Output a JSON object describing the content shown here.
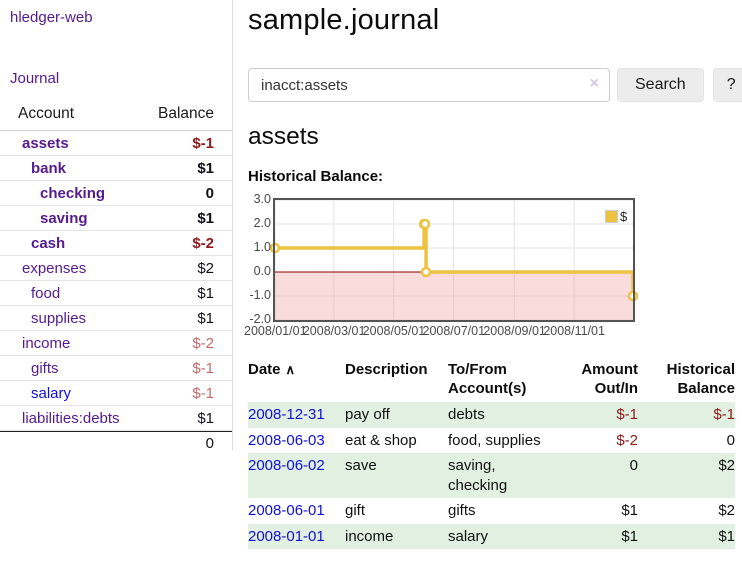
{
  "app": {
    "brand": "hledger-web",
    "nav_journal": "Journal"
  },
  "sidebar": {
    "accounts_header": {
      "account": "Account",
      "balance": "Balance"
    },
    "accounts": [
      {
        "label": "assets",
        "indent": 0,
        "bold": true,
        "balance": "$-1",
        "balance_style": "neg"
      },
      {
        "label": "bank",
        "indent": 1,
        "bold": true,
        "balance": "$1",
        "balance_style": "pos"
      },
      {
        "label": "checking",
        "indent": 2,
        "bold": true,
        "balance": "0",
        "balance_style": "pos"
      },
      {
        "label": "saving",
        "indent": 2,
        "bold": true,
        "balance": "$1",
        "balance_style": "pos"
      },
      {
        "label": "cash",
        "indent": 1,
        "bold": true,
        "balance": "$-2",
        "balance_style": "neg"
      },
      {
        "label": "expenses",
        "indent": 0,
        "bold": false,
        "balance": "$2",
        "balance_style": "pos"
      },
      {
        "label": "food",
        "indent": 1,
        "bold": false,
        "balance": "$1",
        "balance_style": "pos"
      },
      {
        "label": "supplies",
        "indent": 1,
        "bold": false,
        "balance": "$1",
        "balance_style": "pos"
      },
      {
        "label": "income",
        "indent": 0,
        "bold": false,
        "balance": "$-2",
        "balance_style": "neg-faded"
      },
      {
        "label": "gifts",
        "indent": 1,
        "bold": false,
        "balance": "$-1",
        "balance_style": "neg-faded"
      },
      {
        "label": "salary",
        "indent": 1,
        "bold": false,
        "balance": "$-1",
        "balance_style": "neg-faded",
        "unvisited": true
      },
      {
        "label": "liabilities:debts",
        "indent": 0,
        "bold": false,
        "balance": "$1",
        "balance_style": "pos"
      }
    ],
    "total": "0"
  },
  "main": {
    "title": "sample.journal",
    "search": {
      "value": "inacct:assets",
      "clear_icon": "×",
      "search_label": "Search",
      "help_label": "?"
    },
    "account_heading": "assets",
    "chart_label": "Historical Balance:",
    "chart_data": {
      "type": "line",
      "step": true,
      "title": "Historical Balance:",
      "legend": [
        {
          "label": "$",
          "color": "#edc240"
        }
      ],
      "legend_position": "top-right",
      "points": [
        [
          "2008-01-01",
          1
        ],
        [
          "2008-06-01",
          2
        ],
        [
          "2008-06-02",
          2
        ],
        [
          "2008-06-03",
          0
        ],
        [
          "2008-12-31",
          -1
        ]
      ],
      "point_days": [
        0,
        152,
        153,
        154,
        365
      ],
      "ylim": [
        -2,
        3
      ],
      "y_ticks": [
        3,
        2,
        1,
        0,
        -1,
        -2
      ],
      "y_tick_labels": [
        "3.0",
        "2.0",
        "1.0",
        "0.0",
        "-1.0",
        "-2.0"
      ],
      "x_ticks": [
        "2008/01/01",
        "2008/03/01",
        "2008/05/01",
        "2008/07/01",
        "2008/09/01",
        "2008/11/01"
      ],
      "x_tick_days": [
        0,
        60,
        121,
        182,
        244,
        305
      ],
      "xlim_days": [
        0,
        365
      ],
      "grid": true,
      "colors": {
        "series": "#edc240",
        "marker_fill": "#ffffff",
        "negative_region": "rgba(240,150,150,0.33)",
        "zero_line": "#8b0000",
        "grid": "#e3e3e3",
        "border": "#545454"
      }
    },
    "register": {
      "sort_icon": "∧",
      "columns": [
        {
          "label": "Date",
          "align": "l"
        },
        {
          "label": "Description",
          "align": "l"
        },
        {
          "label": "To/From\nAccount(s)",
          "align": "l"
        },
        {
          "label": "Amount\nOut/In",
          "align": "r"
        },
        {
          "label": "Historical\nBalance",
          "align": "r"
        }
      ],
      "rows": [
        {
          "date": "2008-12-31",
          "description": "pay off",
          "accounts": "debts",
          "amount": "$-1",
          "amount_neg": true,
          "balance": "$-1",
          "balance_neg": true,
          "striped": true
        },
        {
          "date": "2008-06-03",
          "description": "eat & shop",
          "accounts": "food, supplies",
          "amount": "$-2",
          "amount_neg": true,
          "balance": "0",
          "balance_neg": false,
          "striped": false
        },
        {
          "date": "2008-06-02",
          "description": "save",
          "accounts": "saving,\nchecking",
          "amount": "0",
          "amount_neg": false,
          "balance": "$2",
          "balance_neg": false,
          "striped": true
        },
        {
          "date": "2008-06-01",
          "description": "gift",
          "accounts": "gifts",
          "amount": "$1",
          "amount_neg": false,
          "balance": "$2",
          "balance_neg": false,
          "striped": false
        },
        {
          "date": "2008-01-01",
          "description": "income",
          "accounts": "salary",
          "amount": "$1",
          "amount_neg": false,
          "balance": "$1",
          "balance_neg": false,
          "striped": true
        }
      ]
    }
  }
}
